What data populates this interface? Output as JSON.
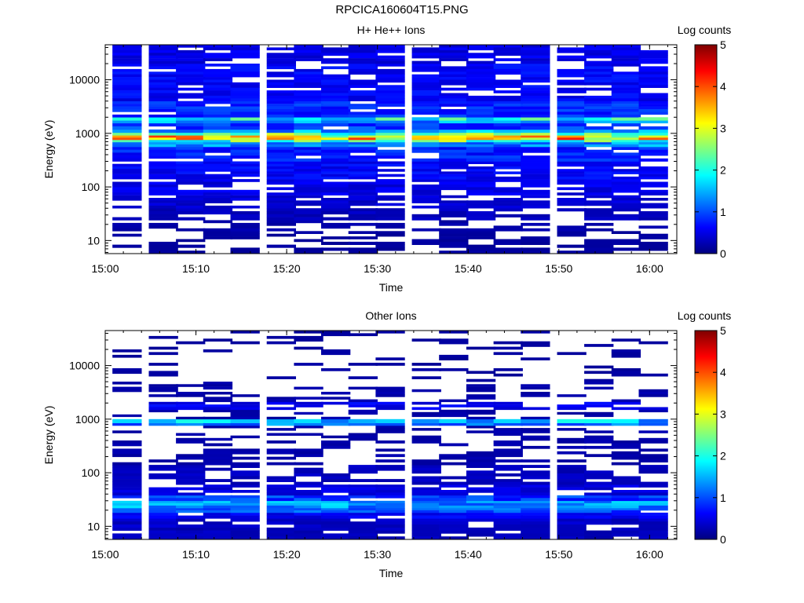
{
  "page": {
    "title": "RPCICA160604T15.PNG"
  },
  "colorscale": {
    "stops": [
      "#00007f",
      "#0000ff",
      "#007fff",
      "#00ffff",
      "#7fff7f",
      "#ffff00",
      "#ff7f00",
      "#ff0000",
      "#7f0000"
    ],
    "empty_color": "#ffffff"
  },
  "chart_data": [
    {
      "type": "heatmap",
      "id": "top",
      "title": "H+ He++ Ions",
      "xlabel": "Time",
      "ylabel": "Energy (eV)",
      "colorbar_label": "Log counts",
      "colorbar_ticks": [
        "0",
        "1",
        "2",
        "3",
        "4",
        "5"
      ],
      "clim": [
        0,
        5
      ],
      "x_ticks": [
        "15:00",
        "15:10",
        "15:20",
        "15:30",
        "15:40",
        "15:50",
        "16:00"
      ],
      "x_range": [
        "15:00",
        "16:03"
      ],
      "y_scale": "log",
      "y_ticks": [
        "10",
        "100",
        "1000",
        "10000"
      ],
      "y_range": [
        5.7,
        45000
      ],
      "time_bins": [
        "15:02",
        "15:06",
        "15:09",
        "15:12",
        "15:15",
        "15:19",
        "15:22",
        "15:25",
        "15:28",
        "15:31",
        "15:35",
        "15:38",
        "15:41",
        "15:44",
        "15:47",
        "15:51",
        "15:54",
        "15:57",
        "16:00"
      ],
      "energy_band_levels": [
        {
          "e_min": 5.7,
          "e_max": 9.5,
          "level": 0.15,
          "fill": 0.55
        },
        {
          "e_min": 9.5,
          "e_max": 15,
          "level": 0.15,
          "fill": 0.45
        },
        {
          "e_min": 15,
          "e_max": 24,
          "level": 0.2,
          "fill": 0.55
        },
        {
          "e_min": 24,
          "e_max": 40,
          "level": 0.3,
          "fill": 0.7
        },
        {
          "e_min": 40,
          "e_max": 70,
          "level": 0.4,
          "fill": 0.75
        },
        {
          "e_min": 70,
          "e_max": 140,
          "level": 0.5,
          "fill": 0.8
        },
        {
          "e_min": 140,
          "e_max": 300,
          "level": 0.6,
          "fill": 0.85
        },
        {
          "e_min": 300,
          "e_max": 560,
          "level": 0.75,
          "fill": 0.9
        },
        {
          "e_min": 560,
          "e_max": 690,
          "level": 1.3,
          "fill": 1.0
        },
        {
          "e_min": 690,
          "e_max": 760,
          "level": 2.3,
          "fill": 1.0
        },
        {
          "e_min": 760,
          "e_max": 840,
          "level": 3.3,
          "fill": 1.0
        },
        {
          "e_min": 840,
          "e_max": 920,
          "level": 3.2,
          "fill": 1.0
        },
        {
          "e_min": 920,
          "e_max": 1030,
          "level": 2.4,
          "fill": 1.0
        },
        {
          "e_min": 1030,
          "e_max": 1180,
          "level": 1.4,
          "fill": 1.0
        },
        {
          "e_min": 1180,
          "e_max": 1550,
          "level": 0.9,
          "fill": 0.9
        },
        {
          "e_min": 1550,
          "e_max": 1750,
          "level": 1.35,
          "fill": 1.0
        },
        {
          "e_min": 1750,
          "e_max": 2000,
          "level": 1.9,
          "fill": 1.0
        },
        {
          "e_min": 2000,
          "e_max": 4000,
          "level": 0.8,
          "fill": 0.9
        },
        {
          "e_min": 4000,
          "e_max": 20000,
          "level": 0.6,
          "fill": 0.85
        },
        {
          "e_min": 20000,
          "e_max": 45000,
          "level": 0.5,
          "fill": 0.8
        }
      ]
    },
    {
      "type": "heatmap",
      "id": "bottom",
      "title": "Other Ions",
      "xlabel": "Time",
      "ylabel": "Energy (eV)",
      "colorbar_label": "Log counts",
      "colorbar_ticks": [
        "0",
        "1",
        "2",
        "3",
        "4",
        "5"
      ],
      "clim": [
        0,
        5
      ],
      "x_ticks": [
        "15:00",
        "15:10",
        "15:20",
        "15:30",
        "15:40",
        "15:50",
        "16:00"
      ],
      "x_range": [
        "15:00",
        "16:03"
      ],
      "y_scale": "log",
      "y_ticks": [
        "10",
        "100",
        "1000",
        "10000"
      ],
      "y_range": [
        5.7,
        45000
      ],
      "time_bins": [
        "15:02",
        "15:06",
        "15:09",
        "15:12",
        "15:15",
        "15:19",
        "15:22",
        "15:25",
        "15:28",
        "15:31",
        "15:35",
        "15:38",
        "15:41",
        "15:44",
        "15:47",
        "15:51",
        "15:54",
        "15:57",
        "16:00"
      ],
      "energy_band_levels": [
        {
          "e_min": 5.7,
          "e_max": 9.5,
          "level": 0.3,
          "fill": 0.85
        },
        {
          "e_min": 9.5,
          "e_max": 14,
          "level": 0.35,
          "fill": 0.85
        },
        {
          "e_min": 14,
          "e_max": 18,
          "level": 0.55,
          "fill": 0.9
        },
        {
          "e_min": 18,
          "e_max": 22,
          "level": 1.0,
          "fill": 0.95
        },
        {
          "e_min": 22,
          "e_max": 30,
          "level": 1.35,
          "fill": 1.0
        },
        {
          "e_min": 30,
          "e_max": 38,
          "level": 0.9,
          "fill": 0.95
        },
        {
          "e_min": 38,
          "e_max": 60,
          "level": 0.45,
          "fill": 0.85
        },
        {
          "e_min": 60,
          "e_max": 140,
          "level": 0.3,
          "fill": 0.6
        },
        {
          "e_min": 140,
          "e_max": 400,
          "level": 0.2,
          "fill": 0.45
        },
        {
          "e_min": 400,
          "e_max": 760,
          "level": 0.2,
          "fill": 0.3
        },
        {
          "e_min": 760,
          "e_max": 850,
          "level": 1.2,
          "fill": 1.0
        },
        {
          "e_min": 850,
          "e_max": 1000,
          "level": 1.55,
          "fill": 1.0
        },
        {
          "e_min": 1000,
          "e_max": 1500,
          "level": 0.2,
          "fill": 0.35
        },
        {
          "e_min": 1500,
          "e_max": 2100,
          "level": 0.55,
          "fill": 0.7
        },
        {
          "e_min": 2100,
          "e_max": 5000,
          "level": 0.2,
          "fill": 0.3
        },
        {
          "e_min": 5000,
          "e_max": 45000,
          "level": 0.15,
          "fill": 0.18
        }
      ]
    }
  ]
}
